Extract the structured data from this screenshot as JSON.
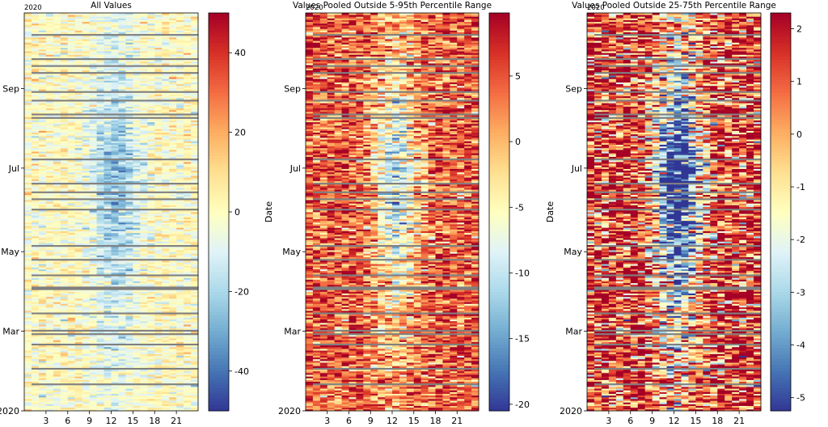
{
  "chart_data": [
    {
      "type": "heatmap",
      "title": "All Values",
      "ylabel": "",
      "year_marker": "2020",
      "x_ticks": [
        3,
        6,
        9,
        12,
        15,
        18,
        21
      ],
      "xlim": [
        0,
        24
      ],
      "y_ticks": [
        "2020",
        "Mar",
        "May",
        "Jul",
        "Sep"
      ],
      "colorbar": {
        "ticks": [
          40,
          20,
          0,
          -20,
          -40
        ],
        "range": [
          -50,
          50
        ]
      },
      "colormap": [
        "#313695",
        "#4575b4",
        "#74add1",
        "#abd9e9",
        "#e0f3f8",
        "#ffffbf",
        "#fee090",
        "#fdae61",
        "#f46d43",
        "#d73027",
        "#a50026"
      ]
    },
    {
      "type": "heatmap",
      "title": "Values Pooled Outside 5-95th Percentile Range",
      "ylabel": "Date",
      "year_marker": "2020",
      "x_ticks": [
        3,
        6,
        9,
        12,
        15,
        18,
        21
      ],
      "xlim": [
        0,
        24
      ],
      "y_ticks": [
        "2020",
        "Mar",
        "May",
        "Jul",
        "Sep"
      ],
      "colorbar": {
        "ticks": [
          5,
          0,
          -5,
          -10,
          -15,
          -20
        ],
        "range": [
          -20.5,
          9.8
        ]
      },
      "colormap": [
        "#313695",
        "#4575b4",
        "#74add1",
        "#abd9e9",
        "#e0f3f8",
        "#ffffbf",
        "#fee090",
        "#fdae61",
        "#f46d43",
        "#d73027",
        "#a50026"
      ]
    },
    {
      "type": "heatmap",
      "title": "Values Pooled Outside 25-75th Percentile Range",
      "ylabel": "Date",
      "year_marker": "2020",
      "x_ticks": [
        3,
        6,
        9,
        12,
        15,
        18,
        21
      ],
      "xlim": [
        0,
        24
      ],
      "y_ticks": [
        "2020",
        "Mar",
        "May",
        "Jul",
        "Sep"
      ],
      "colorbar": {
        "ticks": [
          2,
          1,
          0,
          -1,
          -2,
          -3,
          -4,
          -5
        ],
        "range": [
          -5.25,
          2.3
        ]
      },
      "colormap": [
        "#313695",
        "#4575b4",
        "#74add1",
        "#abd9e9",
        "#e0f3f8",
        "#ffffbf",
        "#fee090",
        "#fdae61",
        "#f46d43",
        "#d73027",
        "#a50026"
      ]
    }
  ]
}
